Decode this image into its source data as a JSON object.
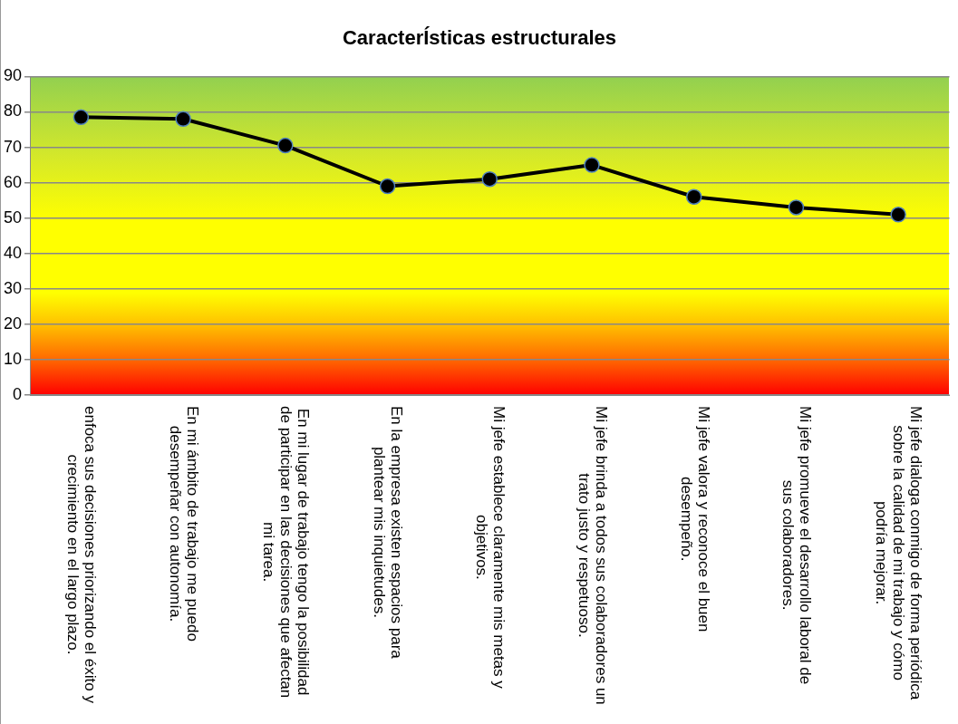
{
  "chart_data": {
    "type": "line",
    "title": "CaracterÍsticas estructurales",
    "categories": [
      "enfoca sus decisiones priorizando el éxito y crecimiento en el largo plazo.",
      "En mi ámbito de trabajo me puedo desempeñar con autonomía.",
      "En mi lugar de trabajo tengo la posibilidad de participar en las decisiones que afectan mi tarea.",
      "En la empresa existen espacios para plantear mis inquietudes.",
      "Mi jefe establece claramente mis metas y objetivos.",
      "Mi jefe brinda a todos sus colaboradores un trato justo y respetuoso.",
      "Mi jefe valora y reconoce el buen desempeño.",
      "Mi jefe promueve el desarrollo laboral de sus colaboradores.",
      "Mi jefe dialoga conmigo de forma periódica sobre la calidad de mi trabajo y cómo podría mejorar."
    ],
    "series": [
      {
        "color": "#000000",
        "values": [
          78.5,
          78,
          70.5,
          59,
          61,
          65,
          56,
          53,
          51
        ]
      }
    ],
    "ylim": [
      0,
      90
    ],
    "yticks": [
      0,
      10,
      20,
      30,
      40,
      50,
      60,
      70,
      80,
      90
    ],
    "grid": "y",
    "legend": false,
    "marker": "circle",
    "line_style": "solid"
  }
}
